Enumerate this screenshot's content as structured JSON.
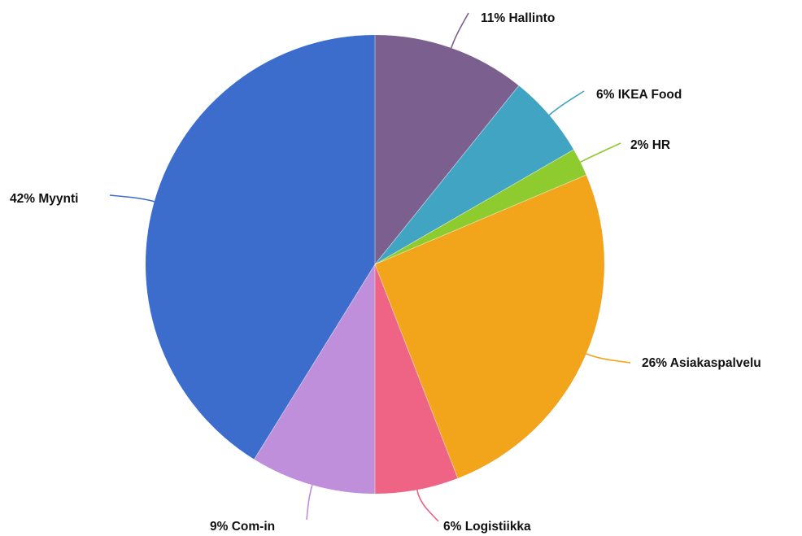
{
  "chart_data": {
    "type": "pie",
    "title": "",
    "start_angle_deg": 0,
    "direction": "clockwise",
    "slices": [
      {
        "label": "Hallinto",
        "value": 11,
        "display": "11% Hallinto",
        "color": "#7b5f8e"
      },
      {
        "label": "IKEA Food",
        "value": 6,
        "display": "6% IKEA Food",
        "color": "#41a4c3"
      },
      {
        "label": "HR",
        "value": 2,
        "display": "2% HR",
        "color": "#8ecb2f"
      },
      {
        "label": "Asiakaspalvelu",
        "value": 26,
        "display": "26% Asiakaspalvelu",
        "color": "#f2a41b"
      },
      {
        "label": "Logistiikka",
        "value": 6,
        "display": "6% Logistiikka",
        "color": "#ef6385"
      },
      {
        "label": "Com-in",
        "value": 9,
        "display": "9% Com-in",
        "color": "#c08fdb"
      },
      {
        "label": "Myynti",
        "value": 42,
        "display": "42% Myynti",
        "color": "#3d6dcc"
      }
    ]
  }
}
